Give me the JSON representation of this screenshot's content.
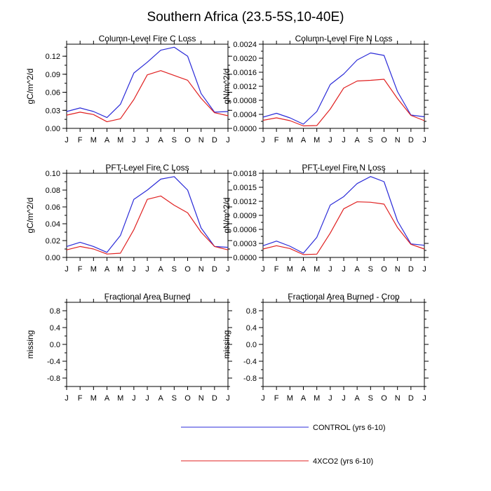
{
  "title": "Southern Africa (23.5-5S,10-40E)",
  "months": [
    "J",
    "F",
    "M",
    "A",
    "M",
    "J",
    "J",
    "A",
    "S",
    "O",
    "N",
    "D",
    "J"
  ],
  "colors": {
    "control": "#2b2bd8",
    "co2": "#e02020"
  },
  "legend": [
    {
      "key": "control",
      "label": "CONTROL (yrs 6-10)"
    },
    {
      "key": "co2",
      "label": "4XCO2 (yrs 6-10)"
    }
  ],
  "chart_data": [
    {
      "type": "line",
      "title": "Column-Level Fire C Loss",
      "ylabel": "gC/m^2/d",
      "ylim": [
        0,
        0.14
      ],
      "yticks": [
        0,
        0.03,
        0.06,
        0.09,
        0.12
      ],
      "ytick_labels": [
        "0.00",
        "0.03",
        "0.06",
        "0.09",
        "0.12"
      ],
      "series": [
        {
          "name": "CONTROL (yrs 6-10)",
          "key": "control",
          "values": [
            0.028,
            0.034,
            0.028,
            0.018,
            0.04,
            0.092,
            0.11,
            0.13,
            0.135,
            0.12,
            0.058,
            0.027,
            0.028
          ]
        },
        {
          "name": "4XCO2 (yrs 6-10)",
          "key": "co2",
          "values": [
            0.022,
            0.027,
            0.023,
            0.011,
            0.016,
            0.048,
            0.089,
            0.096,
            0.088,
            0.08,
            0.05,
            0.026,
            0.021
          ]
        }
      ]
    },
    {
      "type": "line",
      "title": "Column-Level Fire N Loss",
      "ylabel": "gN/m^2/d",
      "ylim": [
        0,
        0.0024
      ],
      "yticks": [
        0,
        0.0004,
        0.0008,
        0.0012,
        0.0016,
        0.002,
        0.0024
      ],
      "ytick_labels": [
        "0.0000",
        "0.0004",
        "0.0008",
        "0.0012",
        "0.0016",
        "0.0020",
        "0.0024"
      ],
      "series": [
        {
          "name": "CONTROL (yrs 6-10)",
          "key": "control",
          "values": [
            0.00032,
            0.00043,
            0.0003,
            0.00012,
            0.00048,
            0.00125,
            0.00155,
            0.00195,
            0.00215,
            0.00208,
            0.00105,
            0.00038,
            0.00033
          ]
        },
        {
          "name": "4XCO2 (yrs 6-10)",
          "key": "co2",
          "values": [
            0.00023,
            0.0003,
            0.00022,
            7e-05,
            8e-05,
            0.00055,
            0.00115,
            0.00135,
            0.00137,
            0.0014,
            0.00085,
            0.00037,
            0.00022
          ]
        }
      ]
    },
    {
      "type": "line",
      "title": "PFT-Level Fire C Loss",
      "ylabel": "gC/m^2/d",
      "ylim": [
        0,
        0.1
      ],
      "yticks": [
        0,
        0.02,
        0.04,
        0.06,
        0.08,
        0.1
      ],
      "ytick_labels": [
        "0.00",
        "0.02",
        "0.04",
        "0.06",
        "0.08",
        "0.10"
      ],
      "series": [
        {
          "name": "CONTROL (yrs 6-10)",
          "key": "control",
          "values": [
            0.013,
            0.018,
            0.013,
            0.006,
            0.026,
            0.069,
            0.08,
            0.093,
            0.096,
            0.08,
            0.035,
            0.013,
            0.012
          ]
        },
        {
          "name": "4XCO2 (yrs 6-10)",
          "key": "co2",
          "values": [
            0.009,
            0.013,
            0.01,
            0.004,
            0.005,
            0.033,
            0.069,
            0.073,
            0.062,
            0.053,
            0.03,
            0.013,
            0.009
          ]
        }
      ]
    },
    {
      "type": "line",
      "title": "PFT-Level Fire N Loss",
      "ylabel": "gN/m^2/d",
      "ylim": [
        0,
        0.0018
      ],
      "yticks": [
        0,
        0.0003,
        0.0006,
        0.0009,
        0.0012,
        0.0015,
        0.0018
      ],
      "ytick_labels": [
        "0.0000",
        "0.0003",
        "0.0006",
        "0.0009",
        "0.0012",
        "0.0015",
        "0.0018"
      ],
      "series": [
        {
          "name": "CONTROL (yrs 6-10)",
          "key": "control",
          "values": [
            0.00025,
            0.00035,
            0.00024,
            9e-05,
            0.00043,
            0.00112,
            0.0013,
            0.00158,
            0.00173,
            0.00162,
            0.00078,
            0.00029,
            0.00026
          ]
        },
        {
          "name": "4XCO2 (yrs 6-10)",
          "key": "co2",
          "values": [
            0.00018,
            0.00025,
            0.00019,
            6e-05,
            7e-05,
            0.00052,
            0.00104,
            0.00119,
            0.00118,
            0.00114,
            0.00064,
            0.00028,
            0.00018
          ]
        }
      ]
    },
    {
      "type": "line",
      "title": "Fractional Area Burned",
      "ylabel": "missing",
      "ylim": [
        -1,
        1
      ],
      "yticks": [
        -0.8,
        -0.4,
        0,
        0.4,
        0.8
      ],
      "ytick_labels": [
        "-0.8",
        "-0.4",
        "0.0",
        "0.4",
        "0.8"
      ],
      "series": []
    },
    {
      "type": "line",
      "title": "Fractional Area Burned - Crop",
      "ylabel": "missing",
      "ylim": [
        -1,
        1
      ],
      "yticks": [
        -0.8,
        -0.4,
        0,
        0.4,
        0.8
      ],
      "ytick_labels": [
        "-0.8",
        "-0.4",
        "0.0",
        "0.4",
        "0.8"
      ],
      "series": []
    }
  ]
}
